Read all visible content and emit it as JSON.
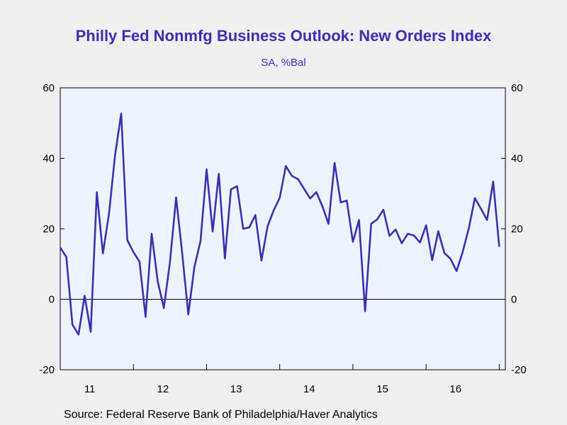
{
  "chart_data": {
    "type": "line",
    "title": "Philly Fed Nonmfg Business Outlook: New Orders Index",
    "subtitle": "SA, %Bal",
    "source": "Source:  Federal Reserve Bank of Philadelphia/Haver Analytics",
    "ylim": [
      -20,
      60
    ],
    "yticks": [
      -20,
      0,
      20,
      40,
      60
    ],
    "x_range": [
      "2011-01",
      "2017-02"
    ],
    "x_tick_labels": [
      "11",
      "12",
      "13",
      "14",
      "15",
      "16"
    ],
    "grid": false,
    "zero_line": true,
    "series": [
      {
        "color": "#3d2fb0",
        "x": [
          "2011-01",
          "2011-02",
          "2011-03",
          "2011-04",
          "2011-05",
          "2011-06",
          "2011-07",
          "2011-08",
          "2011-09",
          "2011-10",
          "2011-11",
          "2011-12",
          "2012-01",
          "2012-02",
          "2012-03",
          "2012-04",
          "2012-05",
          "2012-06",
          "2012-07",
          "2012-08",
          "2012-09",
          "2012-10",
          "2012-11",
          "2012-12",
          "2013-01",
          "2013-02",
          "2013-03",
          "2013-04",
          "2013-05",
          "2013-06",
          "2013-07",
          "2013-08",
          "2013-09",
          "2013-10",
          "2013-11",
          "2013-12",
          "2014-01",
          "2014-02",
          "2014-03",
          "2014-04",
          "2014-05",
          "2014-06",
          "2014-07",
          "2014-08",
          "2014-09",
          "2014-10",
          "2014-11",
          "2014-12",
          "2015-01",
          "2015-02",
          "2015-03",
          "2015-04",
          "2015-05",
          "2015-06",
          "2015-07",
          "2015-08",
          "2015-09",
          "2015-10",
          "2015-11",
          "2015-12",
          "2016-01",
          "2016-02",
          "2016-03",
          "2016-04",
          "2016-05",
          "2016-06",
          "2016-07",
          "2016-08",
          "2016-09",
          "2016-10",
          "2016-11",
          "2016-12",
          "2017-01"
        ],
        "values": [
          14.7,
          12.0,
          -7.2,
          -10.0,
          1.0,
          -9.2,
          30.4,
          13.0,
          24.3,
          41.0,
          52.7,
          16.8,
          13.4,
          10.7,
          -5.0,
          18.6,
          5.0,
          -2.5,
          10.6,
          28.9,
          13.0,
          -4.3,
          9.2,
          16.5,
          36.9,
          19.2,
          35.6,
          11.6,
          31.2,
          32.1,
          20.0,
          20.4,
          23.9,
          11.0,
          20.7,
          25.2,
          28.8,
          37.8,
          35.0,
          34.1,
          31.3,
          28.6,
          30.4,
          26.4,
          21.4,
          38.7,
          27.5,
          28.0,
          16.3,
          22.5,
          -3.4,
          21.4,
          22.7,
          25.4,
          18.0,
          19.8,
          15.9,
          18.6,
          18.1,
          16.1,
          21.0,
          11.1,
          19.3,
          13.1,
          11.5,
          8.0,
          13.4,
          20.1,
          28.7,
          25.7,
          22.5,
          33.4,
          14.9
        ]
      }
    ]
  }
}
